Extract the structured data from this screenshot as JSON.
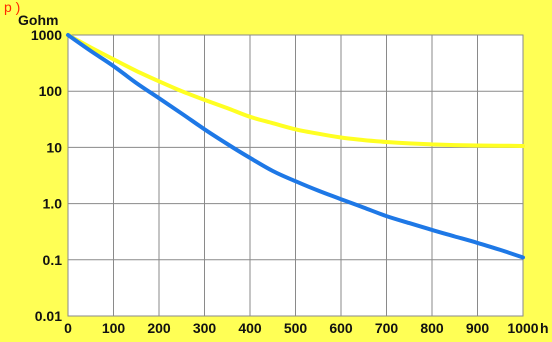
{
  "header_fragment": "p      )",
  "chart_data": {
    "type": "line",
    "title": "",
    "xlabel": "",
    "ylabel": "",
    "x_unit": "h",
    "y_unit": "Gohm",
    "yscale": "log",
    "xlim": [
      0,
      1000
    ],
    "ylim": [
      0.01,
      1000
    ],
    "grid": true,
    "x_ticks": [
      "0",
      "100",
      "200",
      "300",
      "400",
      "500",
      "600",
      "700",
      "800",
      "900",
      "1000"
    ],
    "y_ticks": [
      {
        "value": 1000,
        "label": "1000"
      },
      {
        "value": 100,
        "label": "100"
      },
      {
        "value": 10,
        "label": "10"
      },
      {
        "value": 1,
        "label": "1.0"
      },
      {
        "value": 0.1,
        "label": "0.1"
      },
      {
        "value": 0.01,
        "label": "0.01"
      }
    ],
    "series": [
      {
        "color": "#ffff22",
        "x": [
          0,
          50,
          100,
          150,
          200,
          250,
          300,
          350,
          400,
          450,
          500,
          550,
          600,
          650,
          700,
          750,
          800,
          850,
          900,
          950,
          1000
        ],
        "y": [
          1000,
          600,
          370,
          230,
          150,
          100,
          70,
          50,
          35,
          27,
          21,
          17.5,
          15,
          13.5,
          12.5,
          11.8,
          11.3,
          11,
          10.8,
          10.7,
          10.6
        ]
      },
      {
        "color": "#1e78e6",
        "x": [
          0,
          50,
          100,
          150,
          200,
          250,
          300,
          350,
          400,
          450,
          500,
          550,
          600,
          650,
          700,
          750,
          800,
          850,
          900,
          950,
          1000
        ],
        "y": [
          1000,
          520,
          280,
          140,
          75,
          40,
          21,
          11.5,
          6.5,
          3.8,
          2.5,
          1.7,
          1.2,
          0.85,
          0.6,
          0.45,
          0.34,
          0.26,
          0.2,
          0.15,
          0.11
        ]
      }
    ]
  }
}
